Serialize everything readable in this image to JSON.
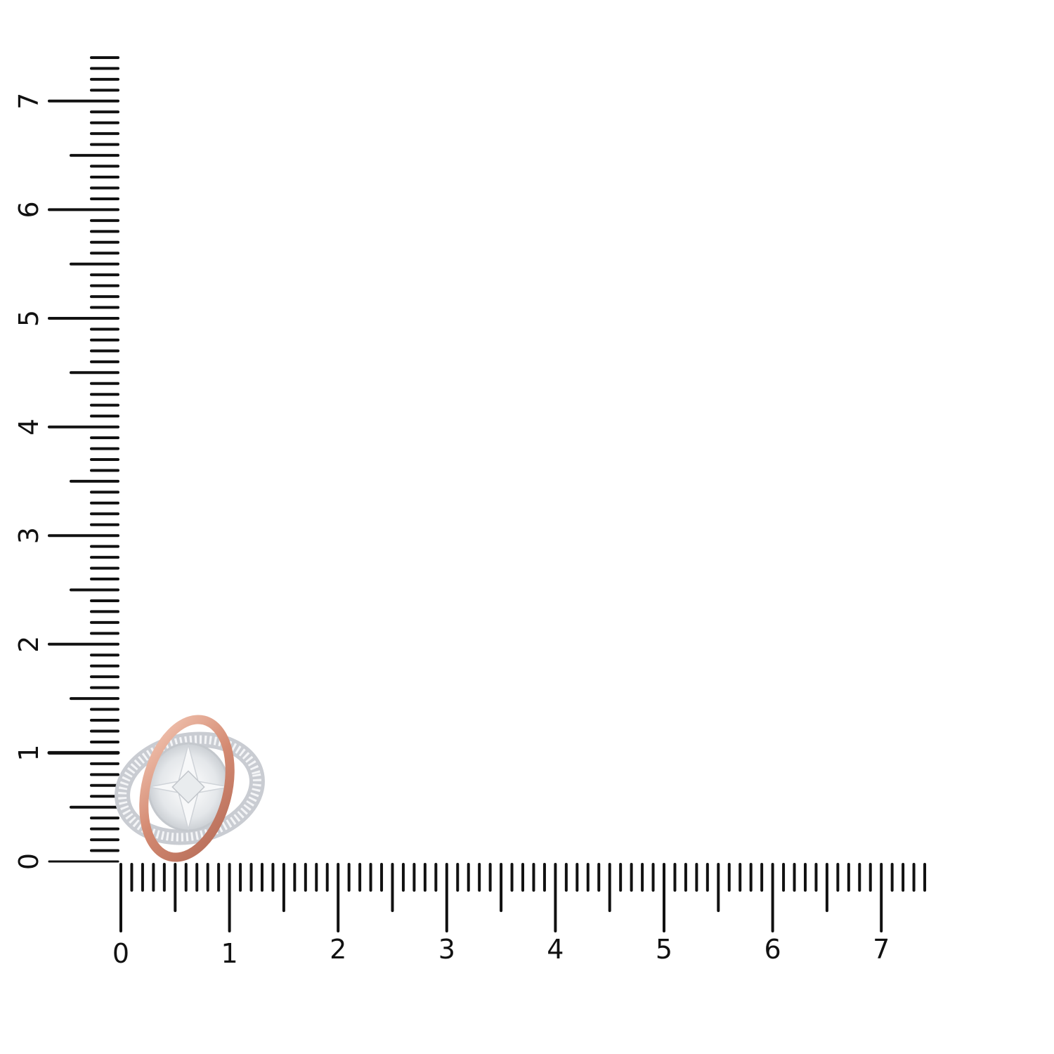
{
  "product": {
    "description_visible": "",
    "metal_colors": {
      "rose_gold": "#d9967f",
      "white_gold": "#d8dbe0",
      "diamond": "#eef0f2"
    }
  },
  "ruler": {
    "unit_labels_horizontal": [
      "0",
      "1",
      "2",
      "3",
      "4",
      "5",
      "6",
      "7"
    ],
    "unit_labels_vertical": [
      "0",
      "1",
      "2",
      "3",
      "4",
      "5",
      "6",
      "7"
    ],
    "max_value": 7.4,
    "tick_color": "#111111"
  }
}
